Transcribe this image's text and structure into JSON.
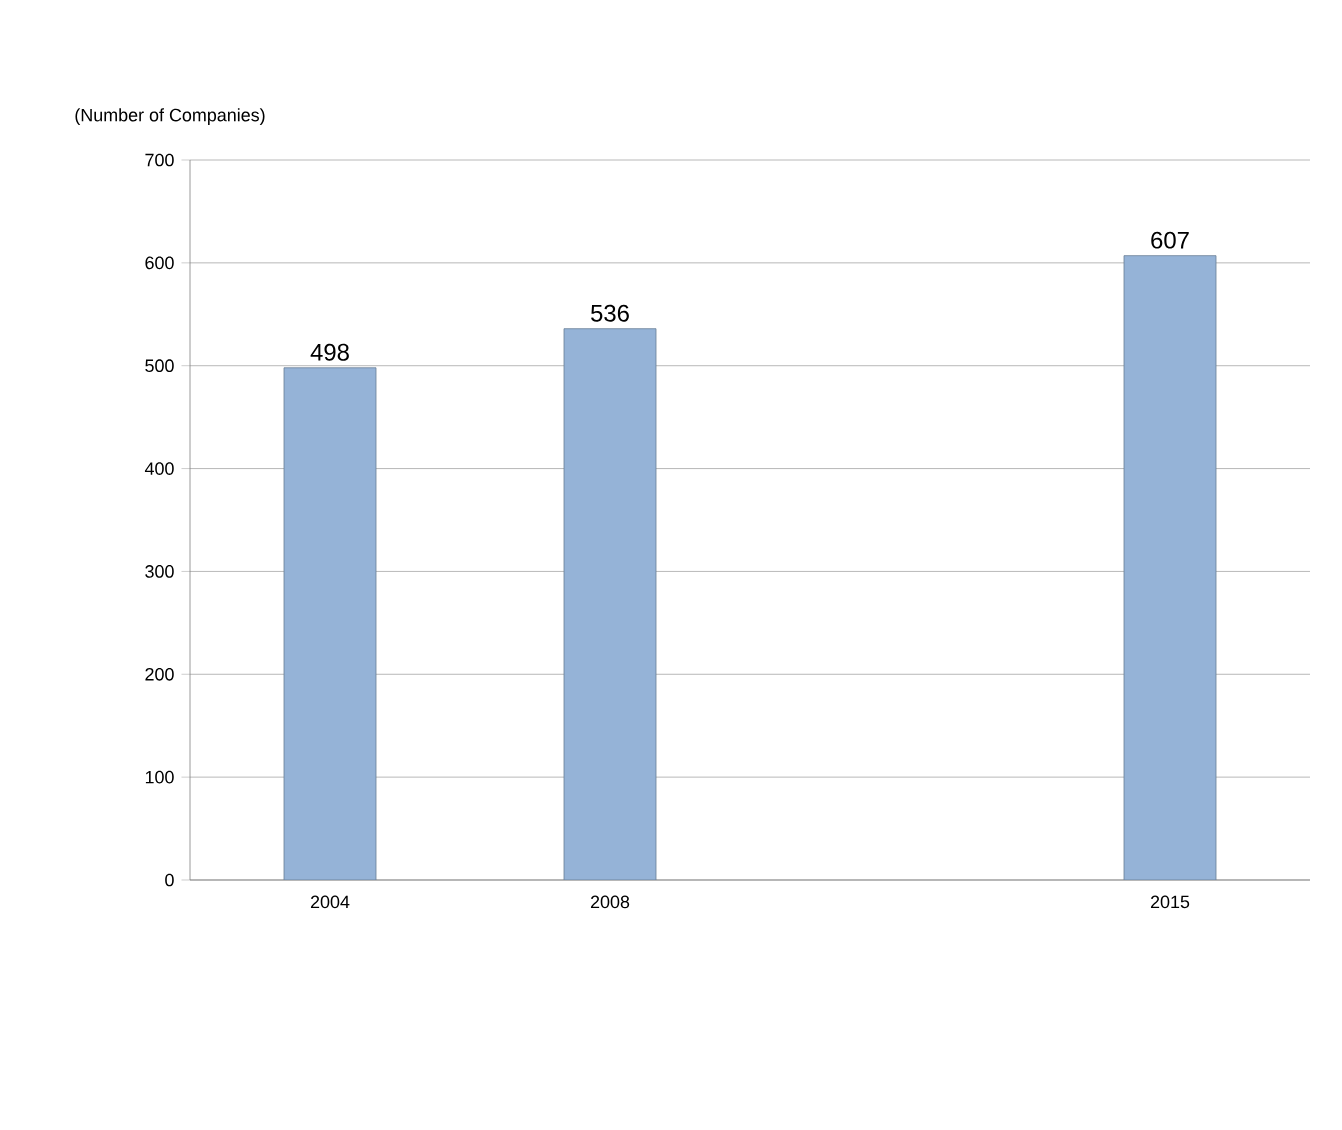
{
  "chart_data": {
    "type": "bar",
    "ylabel": "(Number of Companies)",
    "categories": [
      "2004",
      "2008",
      null,
      "2015"
    ],
    "values": [
      498,
      536,
      null,
      607
    ],
    "color": "#95b3d7",
    "ylim": [
      0,
      700
    ],
    "yticks": [
      0,
      100,
      200,
      300,
      400,
      500,
      600,
      700
    ],
    "grid": "y",
    "data_labels": true
  }
}
